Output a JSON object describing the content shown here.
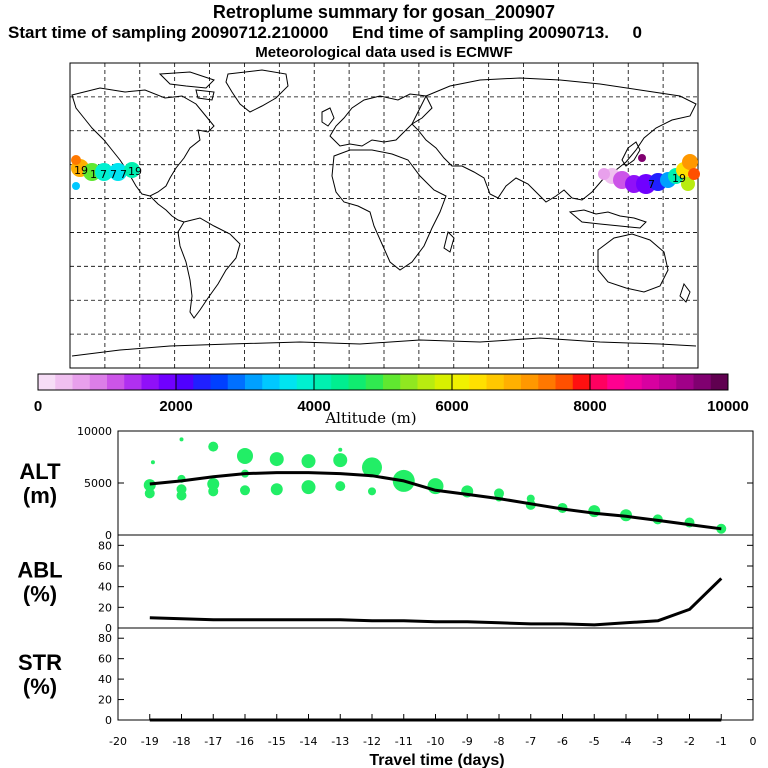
{
  "header": {
    "title": "Retroplume summary for gosan_200907",
    "subtitle": "Start time of sampling 20090712.210000     End time of sampling 20090713.     0",
    "met": "Meteorological data used is ECMWF"
  },
  "colors": {
    "line": "#000000",
    "dot": "#22ee66",
    "frame": "#000000"
  },
  "map": {
    "marker_labels": [
      "19",
      "19",
      "1",
      "7",
      "7",
      "7",
      "7",
      "19"
    ]
  },
  "colorbar": {
    "label": "Altitude (m)",
    "ticks": [
      "0",
      "2000",
      "4000",
      "6000",
      "8000",
      "10000"
    ],
    "colors": [
      "#f6ddf6",
      "#f0c0f0",
      "#e8a0ec",
      "#dc7ee8",
      "#cc55e8",
      "#b030f0",
      "#9010f8",
      "#7000ff",
      "#5000ff",
      "#2020ff",
      "#0040ff",
      "#0070ff",
      "#00a0ff",
      "#00c8ff",
      "#00e4f0",
      "#00f0d0",
      "#00f0b0",
      "#00ee90",
      "#10ec70",
      "#30ea50",
      "#60e830",
      "#90e820",
      "#b8ec10",
      "#d8f000",
      "#f0f000",
      "#ffe000",
      "#ffc800",
      "#ffb000",
      "#ff9800",
      "#ff7800",
      "#ff5000",
      "#ff1010",
      "#ff0060",
      "#ff0090",
      "#f000a0",
      "#d800a0",
      "#c00098",
      "#a00088",
      "#800070",
      "#600050"
    ]
  },
  "chart_data": {
    "type": "line",
    "xlabel": "Travel time (days)",
    "x_ticks": [
      "-20",
      "-19",
      "-18",
      "-17",
      "-16",
      "-15",
      "-14",
      "-13",
      "-12",
      "-11",
      "-10",
      "-9",
      "-8",
      "-7",
      "-6",
      "-5",
      "-4",
      "-3",
      "-2",
      "-1",
      "0"
    ],
    "xlim": [
      -20,
      0
    ],
    "panels": [
      {
        "name": "ALT",
        "ylabel_top": "ALT",
        "ylabel_bottom": "(m)",
        "ylim": [
          0,
          10000
        ],
        "y_ticks": [
          "10000",
          "5000",
          "0"
        ],
        "y_tick_values": [
          10000,
          5000,
          0
        ],
        "series": {
          "x": [
            -19,
            -18,
            -17,
            -16,
            -15,
            -14,
            -13,
            -12,
            -11,
            -10,
            -9,
            -8,
            -7,
            -6,
            -5,
            -4,
            -3,
            -2,
            -1
          ],
          "y": [
            4900,
            5200,
            5600,
            5900,
            6000,
            6000,
            5900,
            5700,
            5200,
            4300,
            3900,
            3500,
            3000,
            2500,
            2100,
            1800,
            1400,
            1000,
            600
          ]
        },
        "clusters": [
          {
            "x": -19,
            "y": [
              4800,
              4000,
              4300
            ],
            "s": [
              6,
              5,
              3
            ]
          },
          {
            "x": -18.9,
            "y": [
              7000
            ],
            "s": [
              2
            ]
          },
          {
            "x": -18,
            "y": [
              9200,
              5400,
              4400,
              3800
            ],
            "s": [
              2,
              4,
              5,
              5
            ]
          },
          {
            "x": -17,
            "y": [
              8500,
              4900,
              4200
            ],
            "s": [
              5,
              6,
              5
            ]
          },
          {
            "x": -16,
            "y": [
              7600,
              5900,
              4300
            ],
            "s": [
              8,
              4,
              5
            ]
          },
          {
            "x": -15,
            "y": [
              7300,
              4400
            ],
            "s": [
              7,
              6
            ]
          },
          {
            "x": -14,
            "y": [
              7100,
              4600
            ],
            "s": [
              7,
              7
            ]
          },
          {
            "x": -13,
            "y": [
              8200,
              7200,
              4700
            ],
            "s": [
              2,
              7,
              5
            ]
          },
          {
            "x": -12,
            "y": [
              6500,
              4200
            ],
            "s": [
              10,
              4
            ]
          },
          {
            "x": -11,
            "y": [
              5200
            ],
            "s": [
              11
            ]
          },
          {
            "x": -10,
            "y": [
              4700
            ],
            "s": [
              8
            ]
          },
          {
            "x": -9,
            "y": [
              4200,
              4000
            ],
            "s": [
              6,
              4
            ]
          },
          {
            "x": -8,
            "y": [
              4000,
              3600
            ],
            "s": [
              5,
              4
            ]
          },
          {
            "x": -7,
            "y": [
              3500,
              2900
            ],
            "s": [
              4,
              5
            ]
          },
          {
            "x": -6,
            "y": [
              2600
            ],
            "s": [
              5
            ]
          },
          {
            "x": -5,
            "y": [
              2300
            ],
            "s": [
              6
            ]
          },
          {
            "x": -4,
            "y": [
              1900
            ],
            "s": [
              6
            ]
          },
          {
            "x": -3,
            "y": [
              1500
            ],
            "s": [
              5
            ]
          },
          {
            "x": -2,
            "y": [
              1200
            ],
            "s": [
              5
            ]
          },
          {
            "x": -1,
            "y": [
              600
            ],
            "s": [
              5
            ]
          }
        ]
      },
      {
        "name": "ABL",
        "ylabel_top": "ABL",
        "ylabel_bottom": "(%)",
        "ylim": [
          0,
          90
        ],
        "y_ticks": [
          "80",
          "60",
          "40",
          "20",
          "0"
        ],
        "y_tick_values": [
          80,
          60,
          40,
          20,
          0
        ],
        "series": {
          "x": [
            -19,
            -18,
            -17,
            -16,
            -15,
            -14,
            -13,
            -12,
            -11,
            -10,
            -9,
            -8,
            -7,
            -6,
            -5,
            -4,
            -3,
            -2,
            -1
          ],
          "y": [
            10,
            9,
            8,
            8,
            8,
            8,
            8,
            7,
            7,
            6,
            6,
            5,
            4,
            4,
            3,
            5,
            7,
            18,
            48
          ]
        }
      },
      {
        "name": "STR",
        "ylabel_top": "STR",
        "ylabel_bottom": "(%)",
        "ylim": [
          0,
          90
        ],
        "y_ticks": [
          "80",
          "60",
          "40",
          "20",
          "0"
        ],
        "y_tick_values": [
          80,
          60,
          40,
          20,
          0
        ],
        "series": {
          "x": [
            -19,
            -18,
            -17,
            -16,
            -15,
            -14,
            -13,
            -12,
            -11,
            -10,
            -9,
            -8,
            -7,
            -6,
            -5,
            -4,
            -3,
            -2,
            -1
          ],
          "y": [
            0,
            0,
            0,
            0,
            0,
            0,
            0,
            0,
            0,
            0,
            0,
            0,
            0,
            0,
            0,
            0,
            0,
            0,
            0
          ]
        }
      }
    ]
  }
}
